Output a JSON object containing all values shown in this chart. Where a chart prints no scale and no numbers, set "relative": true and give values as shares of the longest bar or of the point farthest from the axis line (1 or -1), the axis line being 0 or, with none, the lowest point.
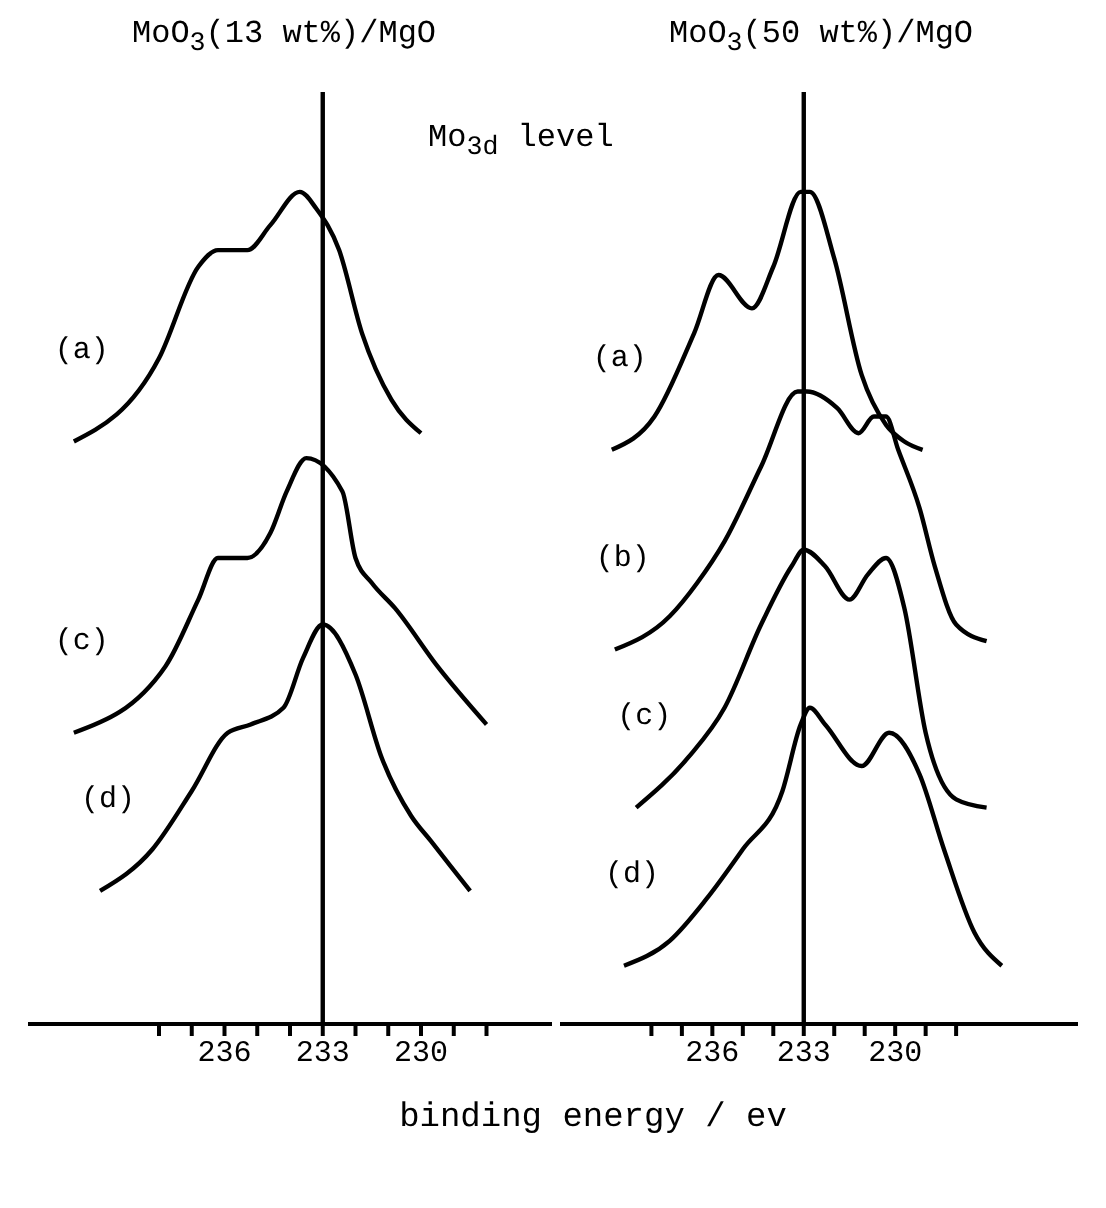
{
  "chart_data": [
    {
      "type": "line",
      "title": "MoO$_{3}$(13 wt%)/MgO",
      "relative": true,
      "marker": "none",
      "tick_labels": "x",
      "xlim": [
        242,
        226
      ],
      "xticks": [
        {
          "value": 238,
          "label": null
        },
        {
          "value": 237,
          "label": null
        },
        236,
        {
          "value": 235,
          "label": null
        },
        {
          "value": 234,
          "label": null
        },
        233,
        {
          "value": 232,
          "label": null
        },
        {
          "value": 231,
          "label": null
        },
        230,
        {
          "value": 229,
          "label": null
        },
        {
          "value": 228,
          "label": null
        }
      ],
      "ref_lines": [
        {
          "axis": "x",
          "value": 233,
          "color": "#000000"
        }
      ],
      "series": [
        {
          "name": "(a)",
          "color": "#000000",
          "x": [
            240.6,
            238.0,
            236.8,
            236.2,
            235.3,
            234.6,
            233.7,
            233.2,
            232.5,
            231.8,
            230.9,
            230.0
          ],
          "values": [
            0.7,
            0.8,
            0.91,
            0.93,
            0.93,
            0.96,
            1.0,
            0.98,
            0.93,
            0.83,
            0.75,
            0.71
          ]
        },
        {
          "name": "(c)",
          "color": "#000000",
          "x": [
            240.6,
            237.8,
            236.8,
            236.2,
            235.3,
            234.6,
            234.1,
            233.5,
            232.4,
            232.0,
            231.5,
            230.8,
            229.5,
            228.0
          ],
          "values": [
            0.35,
            0.43,
            0.51,
            0.56,
            0.56,
            0.59,
            0.64,
            0.68,
            0.64,
            0.56,
            0.53,
            0.5,
            0.43,
            0.36
          ]
        },
        {
          "name": "(d)",
          "color": "#000000",
          "x": [
            239.8,
            238.2,
            237.0,
            235.9,
            235.2,
            234.2,
            233.6,
            233.0,
            232.0,
            231.2,
            230.3,
            229.7,
            228.5
          ],
          "values": [
            0.16,
            0.21,
            0.28,
            0.35,
            0.36,
            0.38,
            0.44,
            0.48,
            0.42,
            0.32,
            0.25,
            0.22,
            0.16
          ]
        }
      ]
    },
    {
      "type": "line",
      "title": "MoO$_{3}$(50 wt%)/MgO",
      "xlabel": "binding energy / ev",
      "annotations": [
        "Mo$_{3d}$ level"
      ],
      "relative": true,
      "marker": "none",
      "tick_labels": "x",
      "xlim": [
        241,
        224
      ],
      "xticks": [
        {
          "value": 238,
          "label": null
        },
        {
          "value": 237,
          "label": null
        },
        236,
        {
          "value": 235,
          "label": null
        },
        {
          "value": 234,
          "label": null
        },
        233,
        {
          "value": 232,
          "label": null
        },
        {
          "value": 231,
          "label": null
        },
        230,
        {
          "value": 229,
          "label": null
        },
        {
          "value": 228,
          "label": null
        }
      ],
      "ref_lines": [
        {
          "axis": "x",
          "value": 233,
          "color": "#000000"
        }
      ],
      "series": [
        {
          "name": "(a)",
          "color": "#000000",
          "x": [
            239.3,
            237.9,
            236.6,
            235.8,
            234.7,
            234.0,
            233.1,
            232.8,
            232.0,
            231.1,
            230.3,
            229.7,
            229.1
          ],
          "values": [
            0.69,
            0.73,
            0.83,
            0.9,
            0.86,
            0.91,
            1.0,
            1.0,
            0.92,
            0.78,
            0.72,
            0.7,
            0.69
          ]
        },
        {
          "name": "(b)",
          "color": "#000000",
          "x": [
            239.2,
            237.4,
            236.5,
            235.6,
            234.4,
            233.2,
            232.9,
            231.9,
            231.2,
            230.7,
            230.3,
            229.9,
            229.2,
            228.7,
            228.0,
            227.0
          ],
          "values": [
            0.45,
            0.49,
            0.53,
            0.58,
            0.67,
            0.76,
            0.76,
            0.74,
            0.71,
            0.73,
            0.73,
            0.69,
            0.62,
            0.55,
            0.48,
            0.46
          ]
        },
        {
          "name": "(c)",
          "color": "#000000",
          "x": [
            238.5,
            236.8,
            235.6,
            234.4,
            233.4,
            233.0,
            232.3,
            231.5,
            230.9,
            230.3,
            229.7,
            229.0,
            228.0,
            227.0
          ],
          "values": [
            0.26,
            0.32,
            0.38,
            0.48,
            0.55,
            0.57,
            0.55,
            0.51,
            0.54,
            0.56,
            0.5,
            0.35,
            0.27,
            0.26
          ]
        },
        {
          "name": "(d)",
          "color": "#000000",
          "x": [
            238.9,
            237.4,
            236.2,
            235.0,
            233.7,
            233.1,
            232.8,
            232.3,
            231.1,
            230.2,
            229.2,
            228.4,
            227.4,
            226.5
          ],
          "values": [
            0.07,
            0.1,
            0.15,
            0.21,
            0.28,
            0.36,
            0.38,
            0.36,
            0.31,
            0.35,
            0.3,
            0.21,
            0.11,
            0.07
          ]
        }
      ]
    }
  ]
}
